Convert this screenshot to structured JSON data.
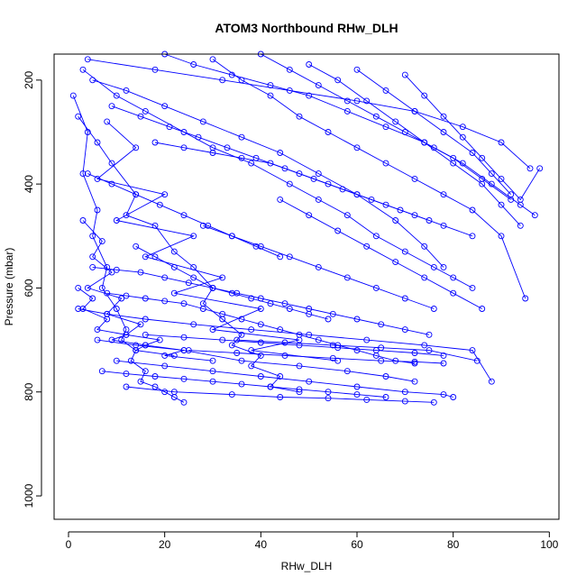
{
  "chart_data": {
    "type": "line",
    "title": "ATOM3 Northbound RHw_DLH",
    "xlabel": "RHw_DLH",
    "ylabel": "Pressure (mbar)",
    "xlim": [
      -3,
      102
    ],
    "ylim": [
      1045,
      150
    ],
    "y_reversed": true,
    "x_ticks": [
      0,
      20,
      40,
      60,
      80,
      100
    ],
    "y_ticks": [
      200,
      400,
      600,
      800,
      1000
    ],
    "series_color": "#0000ff",
    "marker": "open-circle",
    "series": [
      {
        "x": [
          1,
          4,
          3,
          6,
          5,
          8,
          7,
          10,
          12,
          11,
          14,
          13,
          16,
          15,
          18,
          20,
          22,
          24
        ],
        "y": [
          230,
          300,
          380,
          450,
          500,
          560,
          600,
          640,
          680,
          700,
          720,
          740,
          760,
          780,
          790,
          800,
          810,
          820
        ]
      },
      {
        "x": [
          2,
          6,
          9,
          14,
          12,
          18,
          22,
          26,
          30,
          28,
          32,
          36,
          34,
          40,
          38,
          44,
          42,
          48
        ],
        "y": [
          270,
          320,
          360,
          420,
          460,
          480,
          530,
          560,
          600,
          630,
          660,
          690,
          710,
          730,
          750,
          770,
          790,
          800
        ]
      },
      {
        "x": [
          3,
          10,
          16,
          24,
          30,
          38,
          46,
          52,
          58,
          64,
          70,
          76,
          80,
          84
        ],
        "y": [
          180,
          230,
          260,
          300,
          330,
          360,
          400,
          430,
          460,
          500,
          530,
          560,
          580,
          600
        ]
      },
      {
        "x": [
          5,
          12,
          20,
          28,
          36,
          44,
          52,
          60,
          68,
          74,
          78
        ],
        "y": [
          200,
          220,
          250,
          280,
          310,
          340,
          380,
          420,
          470,
          520,
          560
        ]
      },
      {
        "x": [
          8,
          14,
          6,
          20,
          10,
          26,
          16,
          32,
          22,
          40,
          30,
          48,
          38,
          56
        ],
        "y": [
          280,
          330,
          390,
          420,
          470,
          500,
          540,
          580,
          610,
          640,
          680,
          700,
          720,
          740
        ]
      },
      {
        "x": [
          4,
          18,
          32,
          46,
          60,
          72,
          82,
          90,
          96
        ],
        "y": [
          160,
          180,
          200,
          220,
          240,
          260,
          290,
          320,
          370
        ]
      },
      {
        "x": [
          2,
          8,
          16,
          26,
          38,
          50,
          62,
          74,
          84,
          88
        ],
        "y": [
          640,
          650,
          660,
          670,
          680,
          690,
          700,
          710,
          720,
          780
        ]
      },
      {
        "x": [
          6,
          14,
          24,
          36,
          48,
          58,
          66,
          72
        ],
        "y": [
          700,
          710,
          720,
          740,
          750,
          760,
          770,
          780
        ]
      },
      {
        "x": [
          10,
          20,
          30,
          40,
          50,
          60,
          70,
          78,
          80
        ],
        "y": [
          740,
          750,
          760,
          770,
          780,
          790,
          800,
          805,
          810
        ]
      },
      {
        "x": [
          12,
          22,
          34,
          44,
          54,
          62,
          70,
          76
        ],
        "y": [
          790,
          800,
          805,
          810,
          812,
          815,
          818,
          820
        ]
      },
      {
        "x": [
          3,
          7,
          5,
          9,
          4,
          11,
          8,
          15,
          12,
          19,
          16,
          24,
          20,
          30
        ],
        "y": [
          470,
          510,
          540,
          570,
          600,
          620,
          650,
          670,
          690,
          700,
          710,
          720,
          730,
          740
        ]
      },
      {
        "x": [
          2,
          5,
          3,
          8,
          6,
          12,
          9,
          16,
          14,
          22
        ],
        "y": [
          600,
          620,
          640,
          660,
          680,
          690,
          700,
          710,
          720,
          730
        ]
      },
      {
        "x": [
          20,
          26,
          34,
          42,
          50,
          58,
          66,
          74,
          80,
          86,
          92
        ],
        "y": [
          150,
          170,
          190,
          210,
          230,
          260,
          290,
          320,
          350,
          390,
          430
        ]
      },
      {
        "x": [
          30,
          36,
          42,
          48,
          54,
          60,
          66,
          72,
          78,
          84,
          90,
          95
        ],
        "y": [
          160,
          200,
          230,
          270,
          300,
          330,
          360,
          390,
          420,
          450,
          500,
          620
        ]
      },
      {
        "x": [
          40,
          46,
          52,
          58,
          64,
          70,
          76,
          82,
          88,
          94,
          97
        ],
        "y": [
          150,
          180,
          210,
          240,
          270,
          300,
          330,
          360,
          400,
          440,
          460
        ]
      },
      {
        "x": [
          50,
          56,
          62,
          68,
          74,
          80,
          86,
          90,
          94
        ],
        "y": [
          170,
          200,
          240,
          280,
          320,
          360,
          400,
          440,
          480
        ]
      },
      {
        "x": [
          60,
          66,
          72,
          78,
          84,
          88,
          92
        ],
        "y": [
          180,
          220,
          260,
          300,
          340,
          380,
          420
        ]
      },
      {
        "x": [
          70,
          74,
          78,
          82,
          86,
          90,
          94,
          98
        ],
        "y": [
          190,
          230,
          270,
          310,
          350,
          390,
          430,
          370
        ]
      },
      {
        "x": [
          14,
          18,
          22,
          26,
          30,
          34,
          38,
          42,
          46,
          50,
          54
        ],
        "y": [
          520,
          540,
          560,
          580,
          600,
          610,
          620,
          630,
          640,
          650,
          660
        ]
      },
      {
        "x": [
          28,
          34,
          40,
          46,
          52,
          58,
          64,
          70,
          76
        ],
        "y": [
          480,
          500,
          520,
          540,
          560,
          580,
          600,
          620,
          640
        ]
      },
      {
        "x": [
          44,
          50,
          56,
          62,
          68,
          74,
          80,
          86
        ],
        "y": [
          430,
          460,
          490,
          520,
          550,
          580,
          610,
          640
        ]
      },
      {
        "x": [
          8,
          12,
          16,
          20,
          24,
          28,
          32,
          36,
          40,
          44,
          48,
          52,
          56,
          60,
          64,
          68,
          72
        ],
        "y": [
          610,
          615,
          620,
          625,
          630,
          640,
          650,
          660,
          670,
          680,
          690,
          700,
          710,
          720,
          730,
          740,
          745
        ]
      },
      {
        "x": [
          5,
          10,
          15,
          20,
          25,
          30,
          35,
          40,
          45,
          50,
          55,
          60,
          65,
          70,
          75
        ],
        "y": [
          560,
          565,
          570,
          580,
          590,
          600,
          610,
          620,
          630,
          640,
          650,
          660,
          670,
          680,
          690
        ]
      },
      {
        "x": [
          7,
          12,
          18,
          24,
          30,
          36,
          42,
          48,
          54,
          60,
          66
        ],
        "y": [
          760,
          765,
          770,
          775,
          780,
          785,
          790,
          795,
          800,
          805,
          810
        ]
      },
      {
        "x": [
          16,
          24,
          32,
          40,
          48,
          56,
          64,
          72,
          78
        ],
        "y": [
          690,
          695,
          700,
          705,
          710,
          715,
          720,
          725,
          730
        ]
      },
      {
        "x": [
          9,
          15,
          21,
          27,
          33,
          39,
          45,
          51,
          57,
          63,
          69,
          75
        ],
        "y": [
          250,
          270,
          290,
          310,
          330,
          350,
          370,
          390,
          410,
          430,
          450,
          470
        ]
      },
      {
        "x": [
          4,
          9,
          14,
          19,
          24,
          29,
          34,
          39,
          44
        ],
        "y": [
          380,
          400,
          420,
          440,
          460,
          480,
          500,
          520,
          540
        ]
      },
      {
        "x": [
          18,
          24,
          30,
          36,
          42,
          48,
          54,
          60,
          66,
          72,
          78,
          84
        ],
        "y": [
          320,
          330,
          340,
          350,
          360,
          380,
          400,
          420,
          440,
          460,
          480,
          500
        ]
      },
      {
        "x": [
          35,
          45,
          55,
          65,
          75,
          85
        ],
        "y": [
          700,
          705,
          710,
          715,
          720,
          740
        ]
      },
      {
        "x": [
          25,
          35,
          45,
          55,
          65,
          72,
          78
        ],
        "y": [
          720,
          725,
          730,
          735,
          740,
          742,
          745
        ]
      }
    ]
  }
}
